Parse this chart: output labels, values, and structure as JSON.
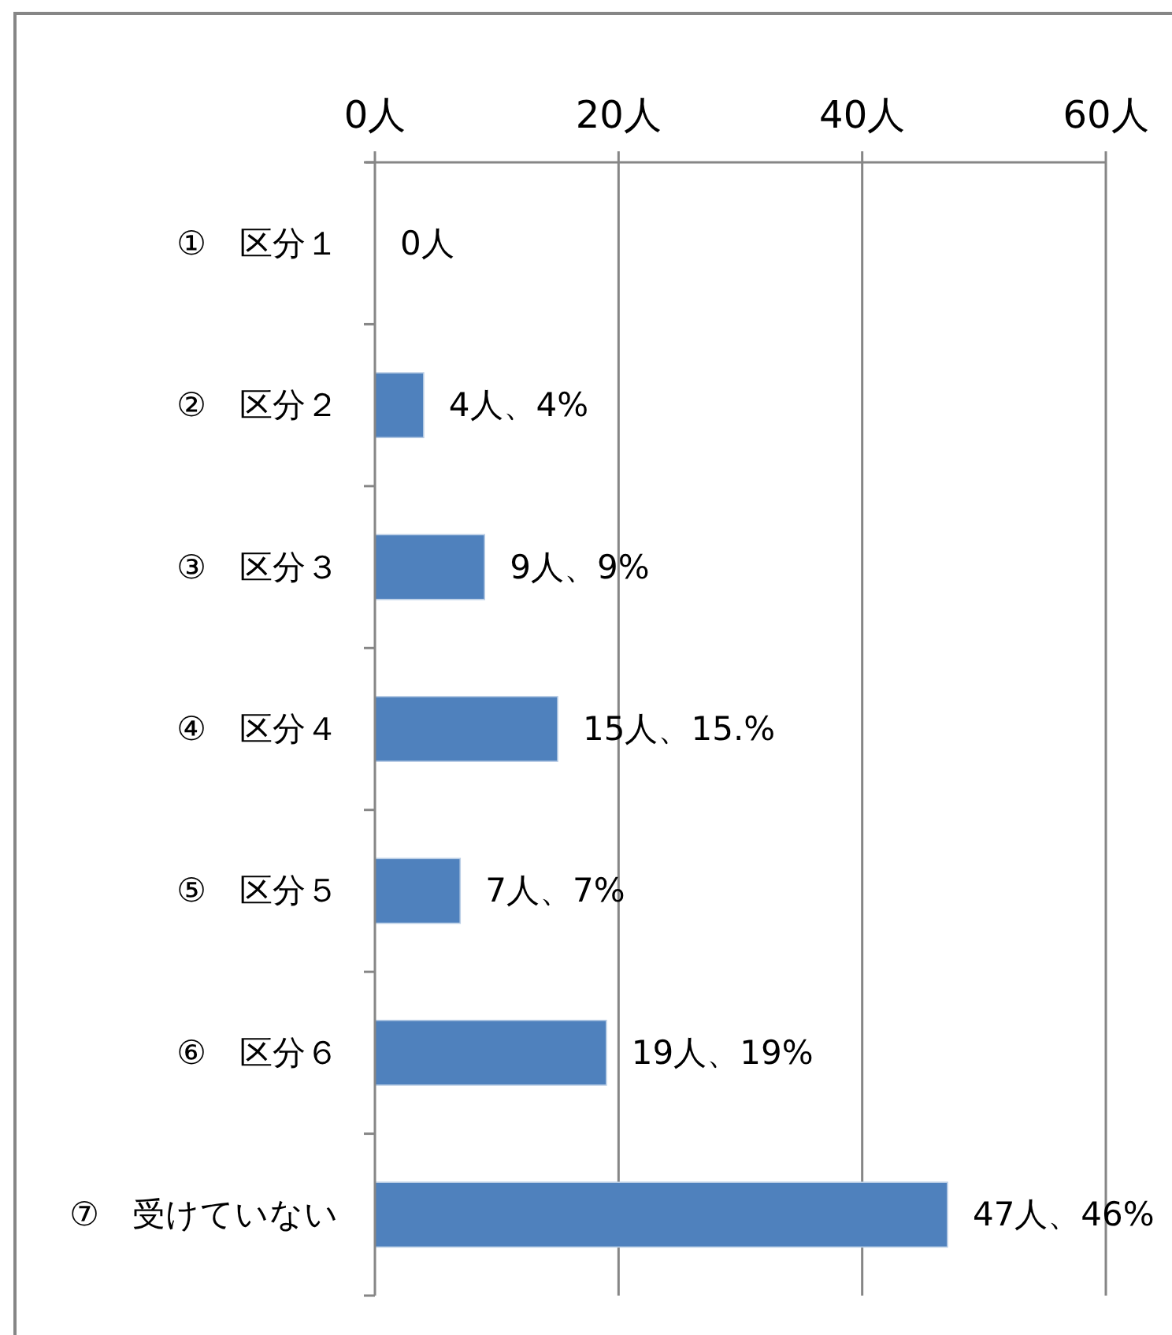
{
  "chart_data": {
    "type": "bar",
    "orientation": "horizontal",
    "categories": [
      "①　区分１",
      "②　区分２",
      "③　区分３",
      "④　区分４",
      "⑤　区分５",
      "⑥　区分６",
      "⑦　受けていない"
    ],
    "values": [
      0,
      4,
      9,
      15,
      7,
      19,
      47
    ],
    "color": "#4f81bd",
    "value_labels": [
      "0人",
      "4人、4%",
      "9人、9%",
      "15人、15.%",
      "7人、7%",
      "19人、19%",
      "47人、46%"
    ],
    "xlim": [
      0,
      60
    ],
    "xticks": [
      {
        "value": 0,
        "label": "0人"
      },
      {
        "value": 20,
        "label": "20人"
      },
      {
        "value": 40,
        "label": "40人"
      },
      {
        "value": 60,
        "label": "60人"
      }
    ],
    "grid": "x"
  }
}
